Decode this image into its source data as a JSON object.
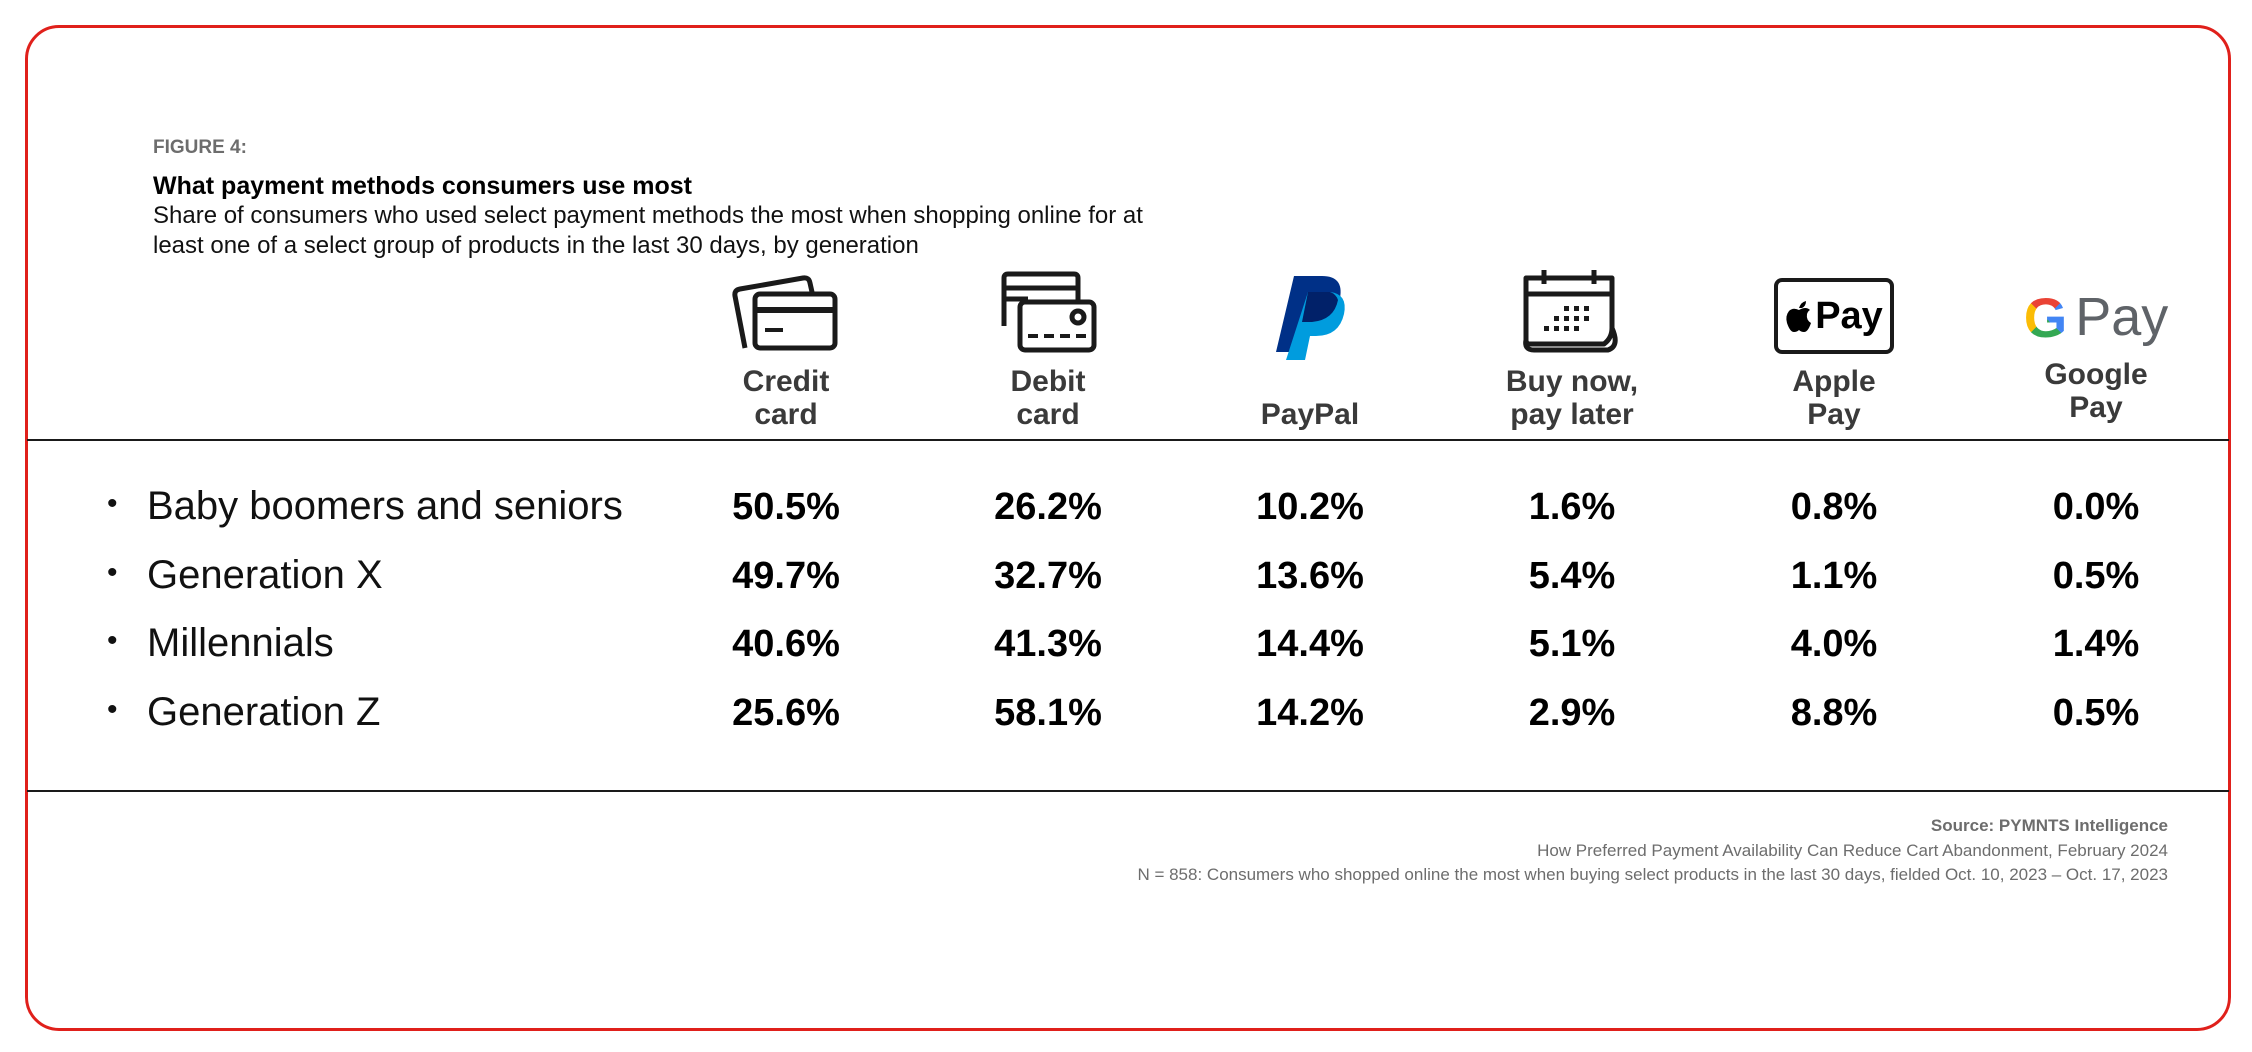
{
  "figure": {
    "label": "FIGURE 4:",
    "title": "What payment methods consumers use most",
    "subtitle": "Share of consumers who used select payment methods the most when shopping online for at least one of a select group of products in the last 30 days, by generation"
  },
  "colors": {
    "frame": "#e0201b",
    "paypal_dark": "#003087",
    "paypal_light": "#009cde",
    "google_blue": "#4285f4",
    "google_red": "#ea4335",
    "google_yellow": "#fbbc05",
    "google_green": "#34a853",
    "text_gray": "#6d6d6d"
  },
  "chart_data": {
    "type": "table",
    "columns": [
      {
        "line1": "Credit",
        "line2": "card",
        "icon": "credit-card-icon"
      },
      {
        "line1": "Debit",
        "line2": "card",
        "icon": "debit-card-icon"
      },
      {
        "line1": "",
        "line2": "PayPal",
        "icon": "paypal-logo-icon"
      },
      {
        "line1": "Buy now,",
        "line2": "pay later",
        "icon": "calendar-icon"
      },
      {
        "line1": "Apple",
        "line2": "Pay",
        "icon": "apple-pay-logo-icon"
      },
      {
        "line1": "Google",
        "line2": "Pay",
        "icon": "google-pay-logo-icon"
      }
    ],
    "rows": [
      {
        "label": "Baby boomers and seniors",
        "values": [
          "50.5%",
          "26.2%",
          "10.2%",
          "1.6%",
          "0.8%",
          "0.0%"
        ]
      },
      {
        "label": "Generation X",
        "values": [
          "49.7%",
          "32.7%",
          "13.6%",
          "5.4%",
          "1.1%",
          "0.5%"
        ]
      },
      {
        "label": "Millennials",
        "values": [
          "40.6%",
          "41.3%",
          "14.4%",
          "5.1%",
          "4.0%",
          "1.4%"
        ]
      },
      {
        "label": "Generation Z",
        "values": [
          "25.6%",
          "58.1%",
          "14.2%",
          "2.9%",
          "8.8%",
          "0.5%"
        ]
      }
    ],
    "icon_text": {
      "apple_pay": "Pay",
      "google_g": "G",
      "google_pay": "Pay"
    }
  },
  "footer": {
    "source": "Source: PYMNTS Intelligence",
    "report": "How Preferred Payment Availability Can Reduce Cart Abandonment, February 2024",
    "note": "N = 858: Consumers who shopped online the most when buying select products in the last 30 days, fielded Oct. 10, 2023 – Oct. 17, 2023"
  }
}
